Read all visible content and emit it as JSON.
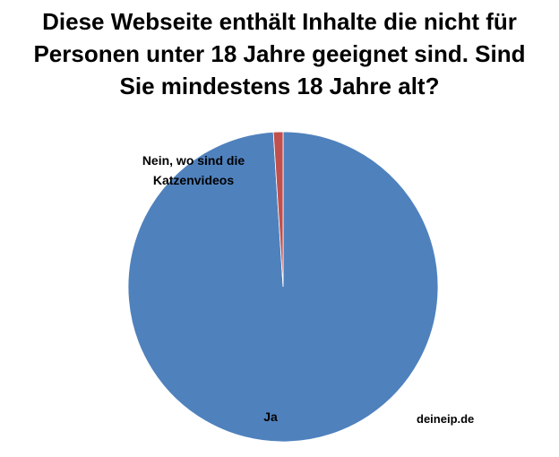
{
  "chart_data": {
    "type": "pie",
    "title_lines": [
      "Diese Webseite enthält Inhalte die nicht für",
      "Personen unter 18 Jahre geeignet sind. Sind",
      "Sie mindestens 18 Jahre alt?"
    ],
    "categories": [
      "Ja",
      "Nein, wo sind die Katzenvideos"
    ],
    "values": [
      99,
      1
    ],
    "label_lines": [
      [
        "Ja"
      ],
      [
        "Nein, wo sind die",
        "Katzenvideos"
      ]
    ],
    "colors": [
      "#4f81bd",
      "#c0504d"
    ],
    "legend": "none"
  },
  "watermark": "deineip.de"
}
